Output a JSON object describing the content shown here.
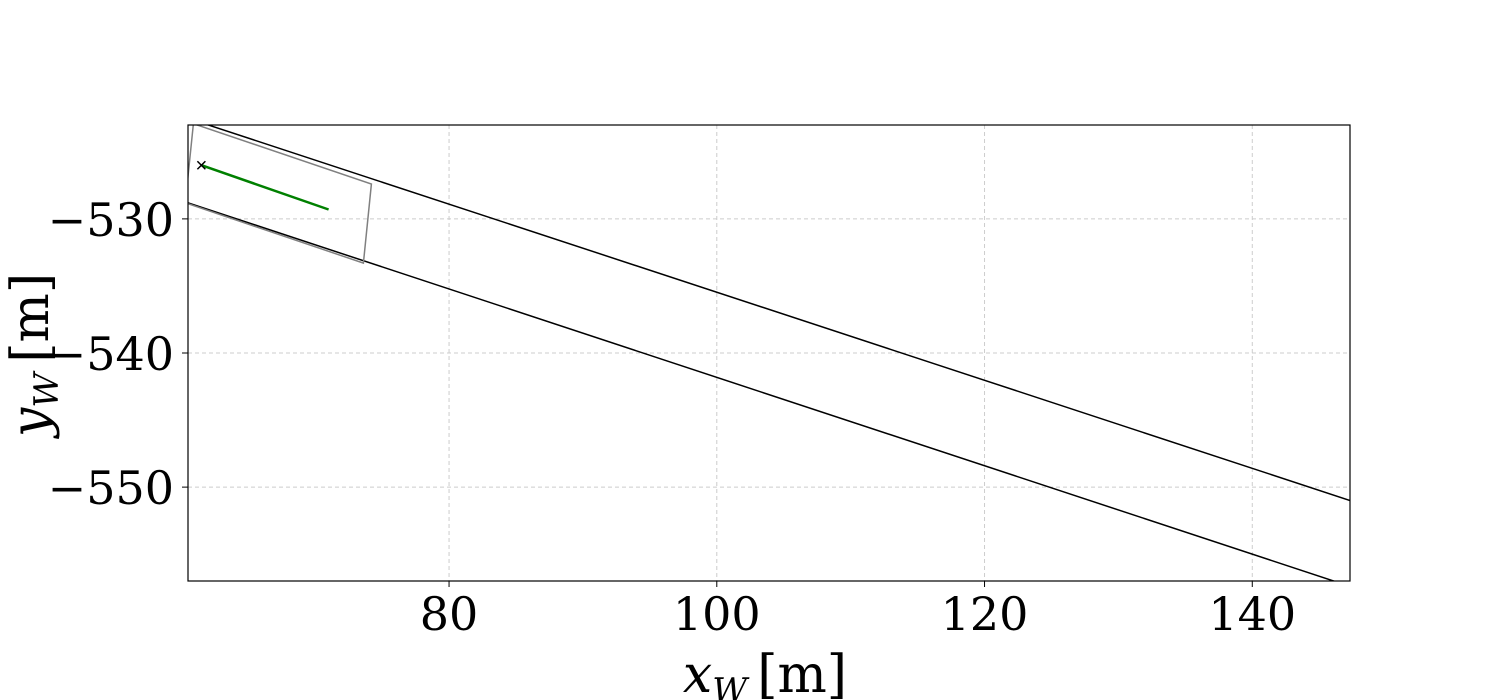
{
  "chart_data": {
    "type": "line",
    "title": "",
    "xlabel": {
      "var": "x",
      "sub": "W",
      "unit": "[m]"
    },
    "ylabel": {
      "var": "y",
      "sub": "W",
      "unit": "[m]"
    },
    "xlim": [
      60.5,
      147.3
    ],
    "ylim": [
      -557,
      -523
    ],
    "xticks": [
      80,
      100,
      120,
      140
    ],
    "yticks": [
      -530,
      -540,
      -550
    ],
    "xtick_labels": [
      "80",
      "100",
      "120",
      "140"
    ],
    "ytick_labels": [
      "−530",
      "−540",
      "−550"
    ],
    "grid": true,
    "legend": "none",
    "series": [
      {
        "kind": "road-boundary",
        "color": "#000000",
        "x": [
          60.5,
          147.3
        ],
        "y": [
          -522.5,
          -551.0
        ]
      },
      {
        "kind": "road-boundary",
        "color": "#000000",
        "x": [
          60.5,
          147.3
        ],
        "y": [
          -528.8,
          -557.4
        ]
      },
      {
        "kind": "box",
        "color": "#808080",
        "x": [
          60.9,
          74.2,
          73.6,
          60.3,
          60.9
        ],
        "y": [
          -522.9,
          -527.4,
          -533.3,
          -528.8,
          -522.9
        ]
      },
      {
        "kind": "path",
        "color": "#008000",
        "x": [
          61.5,
          71.0
        ],
        "y": [
          -526.0,
          -529.3
        ]
      },
      {
        "kind": "start-marker",
        "color": "#000000",
        "marker": "x",
        "x": [
          61.5
        ],
        "y": [
          -526.0
        ]
      }
    ]
  }
}
